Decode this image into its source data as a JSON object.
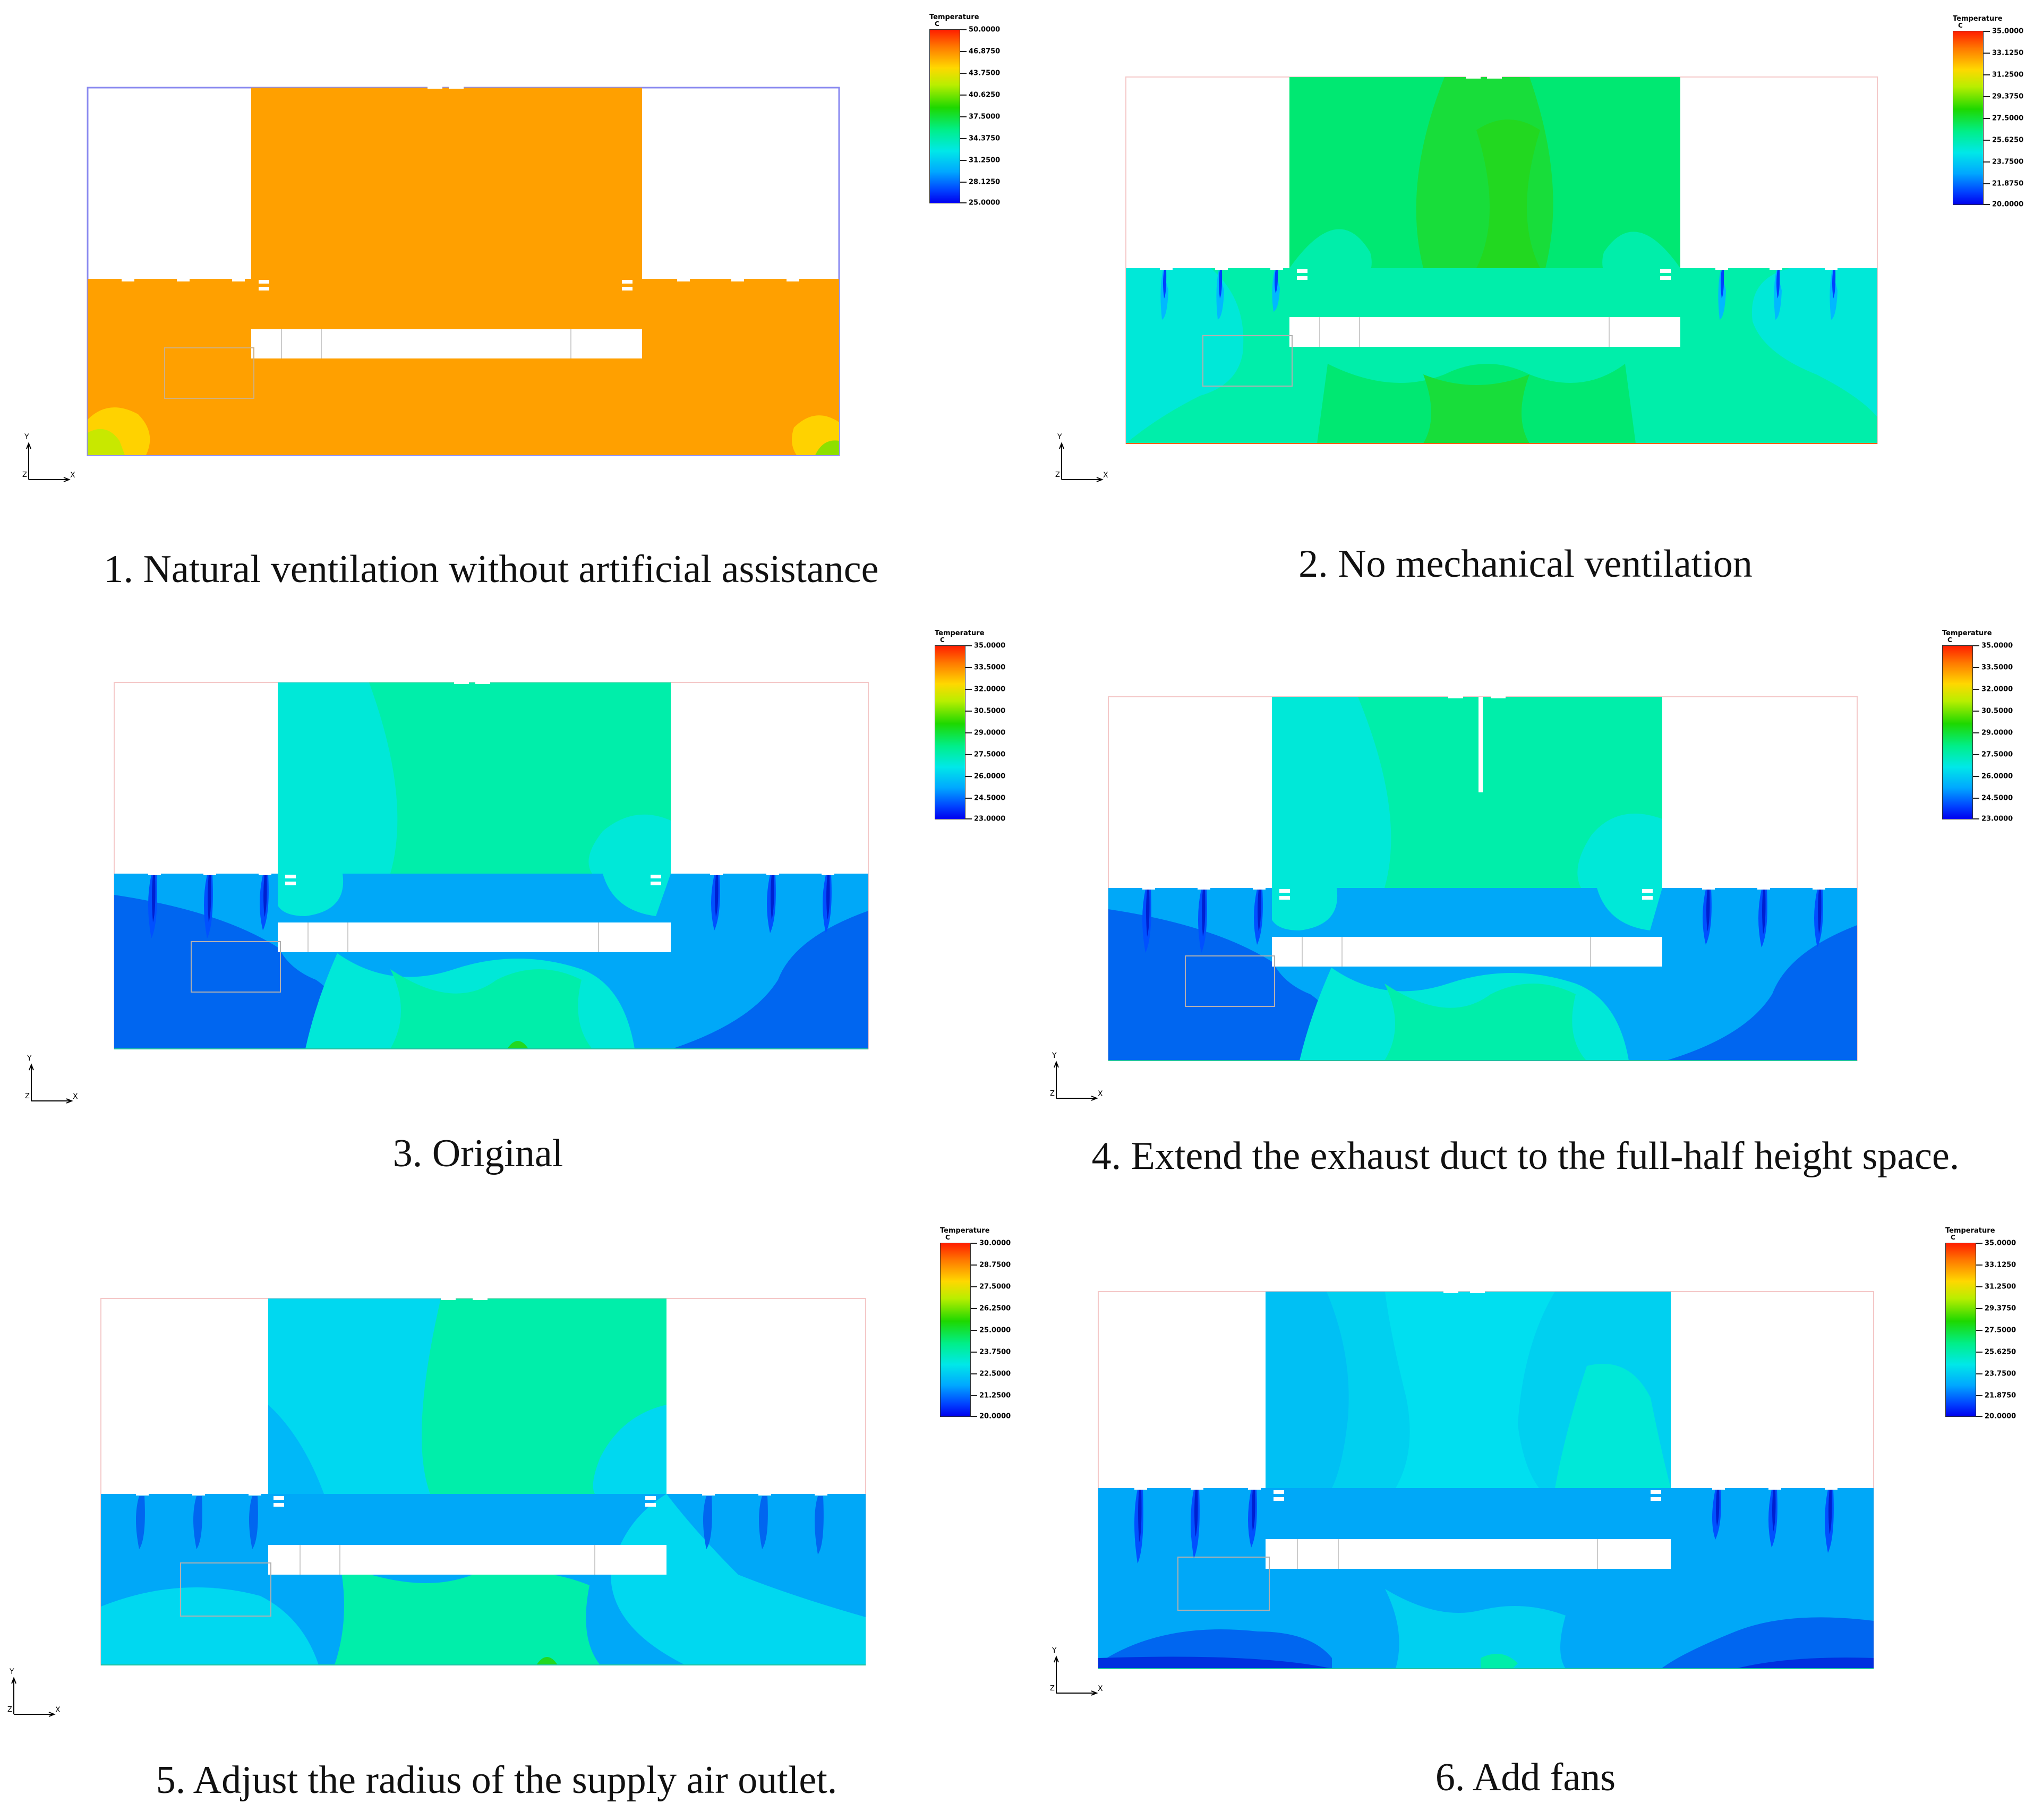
{
  "legend_title": "Temperature",
  "legend_unit": "C",
  "axes": {
    "y": "Y",
    "x": "X",
    "z": "Z"
  },
  "panels": [
    {
      "caption": "1. Natural ventilation without artificial assistance",
      "variant": "natural",
      "legend_ticks": [
        "50.0000",
        "46.8750",
        "43.7500",
        "40.6250",
        "37.5000",
        "34.3750",
        "31.2500",
        "28.1250",
        "25.0000"
      ]
    },
    {
      "caption": "2. No mechanical ventilation",
      "variant": "nomech",
      "legend_ticks": [
        "35.0000",
        "33.1250",
        "31.2500",
        "29.3750",
        "27.5000",
        "25.6250",
        "23.7500",
        "21.8750",
        "20.0000"
      ]
    },
    {
      "caption": "3. Original",
      "variant": "original",
      "legend_ticks": [
        "35.0000",
        "33.5000",
        "32.0000",
        "30.5000",
        "29.0000",
        "27.5000",
        "26.0000",
        "24.5000",
        "23.0000"
      ]
    },
    {
      "caption": "4. Extend the exhaust duct to the full-half height space.",
      "variant": "duct",
      "legend_ticks": [
        "35.0000",
        "33.5000",
        "32.0000",
        "30.5000",
        "29.0000",
        "27.5000",
        "26.0000",
        "24.5000",
        "23.0000"
      ]
    },
    {
      "caption": "5. Adjust the radius of the supply air outlet.",
      "variant": "radius",
      "legend_ticks": [
        "30.0000",
        "28.7500",
        "27.5000",
        "26.2500",
        "25.0000",
        "23.7500",
        "22.5000",
        "21.2500",
        "20.0000"
      ]
    },
    {
      "caption": "6. Add fans",
      "variant": "fans",
      "legend_ticks": [
        "35.0000",
        "33.1250",
        "31.2500",
        "29.3750",
        "27.5000",
        "25.6250",
        "23.7500",
        "21.8750",
        "20.0000"
      ]
    }
  ]
}
